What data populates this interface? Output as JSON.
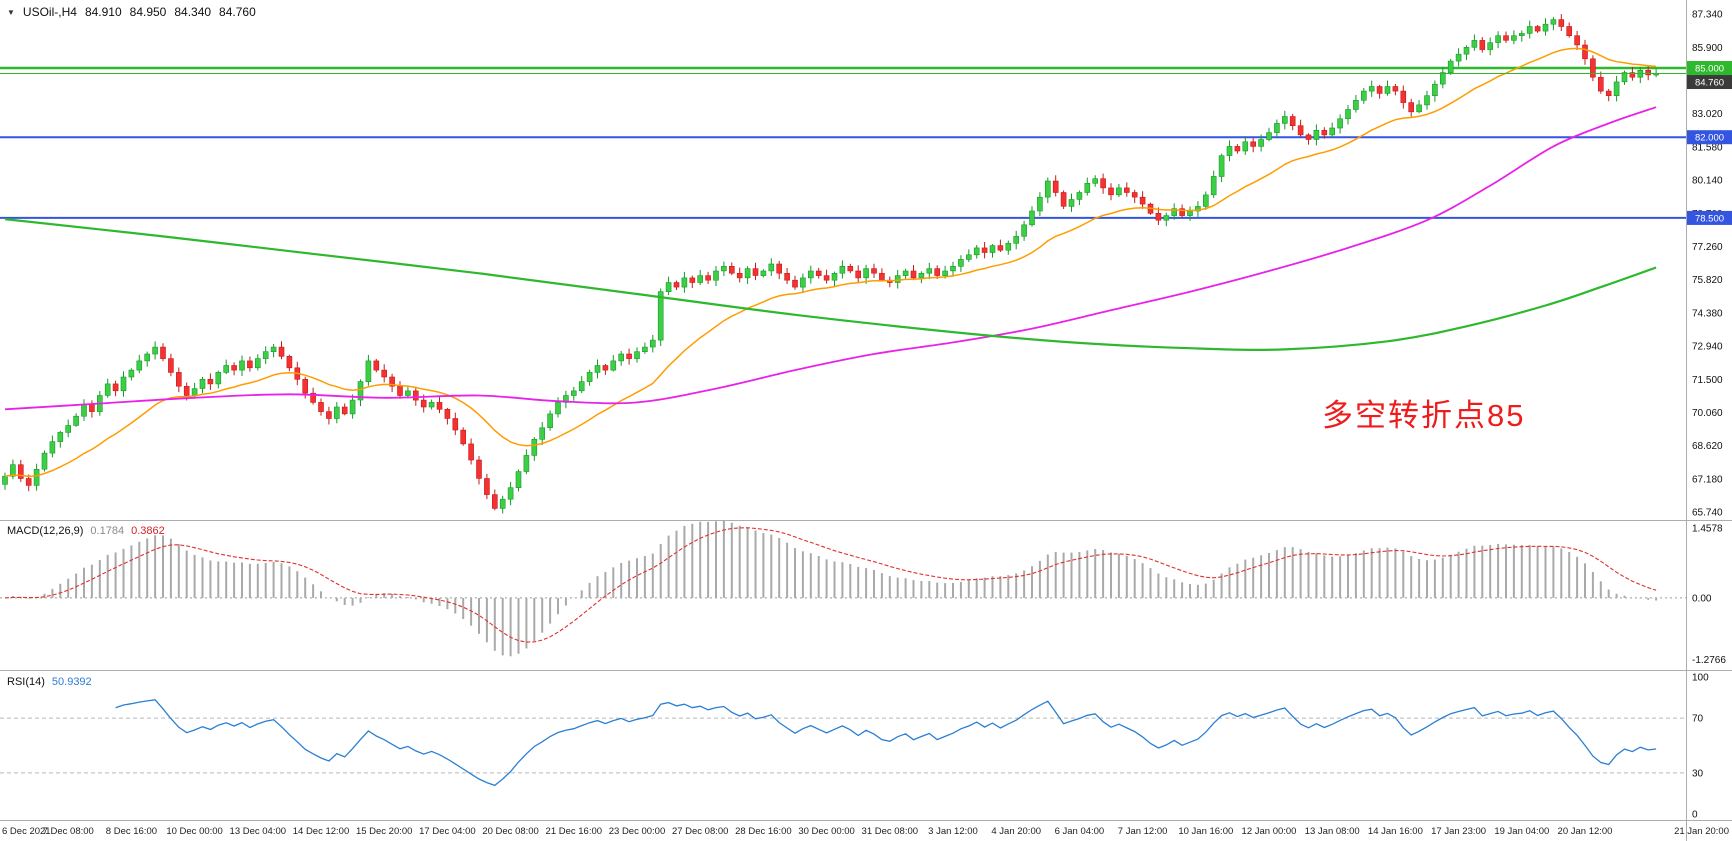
{
  "header": {
    "symbol_period": "USOil-,H4",
    "open": "84.910",
    "high": "84.950",
    "low": "84.340",
    "close": "84.760"
  },
  "annotation": {
    "text": "多空转折点85",
    "color": "#ee1c1c"
  },
  "colors": {
    "candle_up": "#3ccf46",
    "candle_up_stroke": "#149a28",
    "candle_dn": "#f53131",
    "candle_dn_stroke": "#c31c1c",
    "ma_fast": "#ff9c00",
    "ma_mid": "#e822e8",
    "ma_slow": "#2db82d",
    "hline_green": "#2db82d",
    "hline_blue": "#3355e0",
    "macd_hist": "#a9a9a9",
    "macd_signal": "#e03030",
    "rsi": "#2a7fd4",
    "tag_current": "#3a3a3a",
    "axis_text": "#111111",
    "border": "#adadad"
  },
  "chart_data": {
    "type": "candlestick",
    "symbol": "USOil-",
    "timeframe": "H4",
    "bars_per_label": 8,
    "x_labels": [
      "6 Dec 2021",
      "7 Dec 08:00",
      "8 Dec 16:00",
      "10 Dec 00:00",
      "13 Dec 04:00",
      "14 Dec 12:00",
      "15 Dec 20:00",
      "17 Dec 04:00",
      "20 Dec 08:00",
      "21 Dec 16:00",
      "23 Dec 00:00",
      "27 Dec 08:00",
      "28 Dec 16:00",
      "30 Dec 00:00",
      "31 Dec 08:00",
      "3 Jan 12:00",
      "4 Jan 20:00",
      "6 Jan 04:00",
      "7 Jan 12:00",
      "10 Jan 16:00",
      "12 Jan 00:00",
      "13 Jan 08:00",
      "14 Jan 16:00",
      "17 Jan 23:00",
      "19 Jan 04:00",
      "20 Jan 12:00",
      "21 Jan 20:00"
    ],
    "price_axis_labels": [
      "87.340",
      "85.900",
      "84.460",
      "83.020",
      "81.580",
      "80.140",
      "78.700",
      "77.260",
      "75.820",
      "74.380",
      "72.940",
      "71.500",
      "70.060",
      "68.620",
      "67.180",
      "65.740"
    ],
    "price_axis_range": [
      65.4,
      87.95
    ],
    "closes": [
      67.3,
      67.8,
      67.2,
      66.9,
      67.6,
      68.3,
      68.8,
      69.2,
      69.5,
      69.9,
      70.4,
      70.1,
      70.8,
      71.3,
      71.0,
      71.6,
      71.9,
      72.3,
      72.6,
      72.9,
      72.4,
      71.8,
      71.2,
      70.8,
      71.1,
      71.5,
      71.3,
      71.8,
      72.1,
      71.9,
      72.3,
      72.0,
      72.4,
      72.7,
      72.9,
      72.5,
      72.0,
      71.5,
      70.9,
      70.5,
      70.1,
      69.8,
      70.3,
      70.0,
      70.6,
      71.4,
      72.3,
      71.9,
      71.6,
      71.2,
      70.8,
      71.0,
      70.6,
      70.3,
      70.5,
      70.2,
      69.8,
      69.3,
      68.7,
      68.0,
      67.2,
      66.5,
      65.9,
      66.3,
      66.8,
      67.5,
      68.2,
      68.9,
      69.4,
      70.0,
      70.5,
      70.8,
      71.0,
      71.4,
      71.8,
      72.1,
      71.9,
      72.3,
      72.6,
      72.4,
      72.7,
      72.9,
      73.2,
      75.3,
      75.7,
      75.5,
      75.9,
      75.7,
      76.0,
      75.8,
      76.2,
      76.4,
      76.1,
      75.9,
      76.3,
      76.0,
      76.2,
      76.5,
      76.1,
      75.8,
      75.5,
      75.9,
      76.2,
      76.0,
      75.8,
      76.1,
      76.4,
      76.2,
      75.9,
      76.3,
      76.1,
      75.8,
      75.7,
      76.0,
      76.2,
      75.9,
      76.1,
      76.3,
      76.0,
      76.2,
      76.4,
      76.7,
      76.9,
      77.2,
      77.0,
      77.3,
      77.1,
      77.4,
      77.7,
      78.2,
      78.8,
      79.4,
      80.1,
      79.6,
      79.0,
      79.3,
      79.6,
      80.0,
      80.2,
      79.8,
      79.5,
      79.8,
      79.6,
      79.4,
      79.1,
      78.7,
      78.4,
      78.6,
      78.9,
      78.6,
      78.8,
      79.0,
      79.5,
      80.3,
      81.2,
      81.6,
      81.4,
      81.8,
      81.6,
      81.9,
      82.2,
      82.6,
      82.9,
      82.5,
      82.1,
      81.9,
      82.3,
      82.1,
      82.4,
      82.8,
      83.2,
      83.6,
      84.0,
      84.2,
      83.9,
      84.2,
      84.0,
      83.5,
      83.1,
      83.4,
      83.8,
      84.3,
      84.8,
      85.3,
      85.6,
      85.9,
      86.2,
      85.8,
      86.1,
      86.4,
      86.2,
      86.4,
      86.5,
      86.8,
      86.6,
      86.9,
      87.1,
      86.8,
      86.4,
      86.0,
      85.4,
      84.6,
      84.0,
      83.8,
      84.4,
      84.8,
      84.6,
      84.9,
      84.7,
      84.76
    ],
    "overlays": {
      "ma_fast_orange": {
        "period": 20
      },
      "ma_mid_magenta": {
        "anchors": [
          [
            0,
            70.2
          ],
          [
            12,
            70.45
          ],
          [
            24,
            70.7
          ],
          [
            36,
            70.85
          ],
          [
            48,
            70.7
          ],
          [
            60,
            70.8
          ],
          [
            70,
            70.55
          ],
          [
            80,
            70.5
          ],
          [
            90,
            71.1
          ],
          [
            100,
            71.9
          ],
          [
            110,
            72.6
          ],
          [
            120,
            73.1
          ],
          [
            130,
            73.7
          ],
          [
            140,
            74.5
          ],
          [
            150,
            75.3
          ],
          [
            160,
            76.2
          ],
          [
            170,
            77.2
          ],
          [
            180,
            78.4
          ],
          [
            188,
            79.9
          ],
          [
            196,
            81.6
          ],
          [
            203,
            82.6
          ],
          [
            209,
            83.3
          ]
        ]
      },
      "ma_slow_green": {
        "anchors": [
          [
            0,
            78.45
          ],
          [
            20,
            77.7
          ],
          [
            40,
            76.9
          ],
          [
            60,
            76.1
          ],
          [
            80,
            75.2
          ],
          [
            100,
            74.3
          ],
          [
            120,
            73.55
          ],
          [
            135,
            73.1
          ],
          [
            150,
            72.85
          ],
          [
            162,
            72.8
          ],
          [
            175,
            73.15
          ],
          [
            185,
            73.8
          ],
          [
            195,
            74.7
          ],
          [
            202,
            75.5
          ],
          [
            209,
            76.35
          ]
        ]
      }
    },
    "hlines": [
      {
        "price": 85.0,
        "label": "85.000",
        "color": "#2db82d",
        "width": 2.5
      },
      {
        "price": 82.0,
        "label": "82.000",
        "color": "#3355e0",
        "width": 2
      },
      {
        "price": 78.5,
        "label": "78.500",
        "color": "#3355e0",
        "width": 2
      }
    ],
    "current_price": {
      "value": 84.76,
      "label": "84.760"
    },
    "macd": {
      "label": "MACD(12,26,9)",
      "value_main": "0.1784",
      "value_signal": "0.3862",
      "fast": 12,
      "slow": 26,
      "signal": 9,
      "axis_labels": [
        "1.4578",
        "0.00",
        "-1.2766"
      ],
      "range": [
        -1.5,
        1.6
      ]
    },
    "rsi": {
      "label": "RSI(14)",
      "value": "50.9392",
      "period": 14,
      "axis_labels": [
        "100",
        "70",
        "30",
        "0"
      ],
      "levels": [
        70,
        30
      ],
      "range": [
        0,
        100
      ]
    }
  }
}
